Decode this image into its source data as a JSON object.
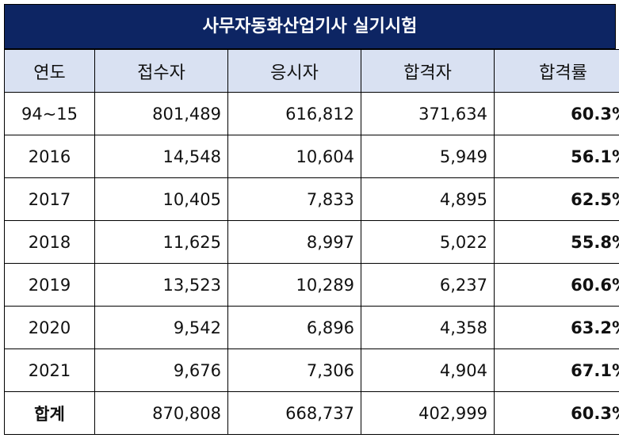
{
  "title": "사무자동화산업기사 실기시험",
  "headers": [
    "연도",
    "접수자",
    "응시자",
    "합격자",
    "합격률"
  ],
  "rows": [
    {
      "year": "94~15",
      "applicants": "801,489",
      "examinees": "616,812",
      "passed": "371,634",
      "rate": "60.3%"
    },
    {
      "year": "2016",
      "applicants": "14,548",
      "examinees": "10,604",
      "passed": "5,949",
      "rate": "56.1%"
    },
    {
      "year": "2017",
      "applicants": "10,405",
      "examinees": "7,833",
      "passed": "4,895",
      "rate": "62.5%"
    },
    {
      "year": "2018",
      "applicants": "11,625",
      "examinees": "8,997",
      "passed": "5,022",
      "rate": "55.8%"
    },
    {
      "year": "2019",
      "applicants": "13,523",
      "examinees": "10,289",
      "passed": "6,237",
      "rate": "60.6%"
    },
    {
      "year": "2020",
      "applicants": "9,542",
      "examinees": "6,896",
      "passed": "4,358",
      "rate": "63.2%"
    },
    {
      "year": "2021",
      "applicants": "9,676",
      "examinees": "7,306",
      "passed": "4,904",
      "rate": "67.1%"
    },
    {
      "year": "합계",
      "applicants": "870,808",
      "examinees": "668,737",
      "passed": "402,999",
      "rate": "60.3%"
    }
  ],
  "colors": {
    "title_bg": "#0d2563",
    "header_bg": "#d9e1f2"
  }
}
